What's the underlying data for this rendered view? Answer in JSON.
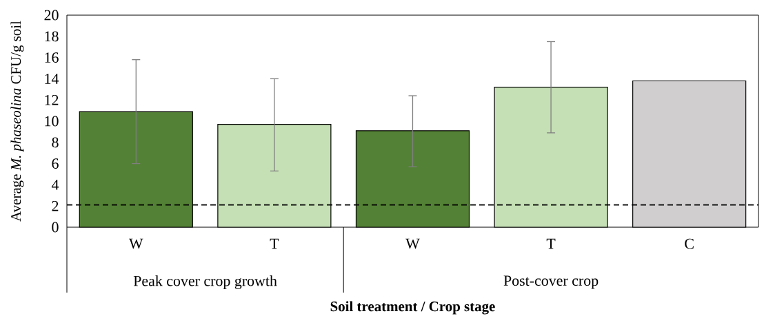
{
  "chart_data": {
    "type": "bar",
    "xlabel": "Soil treatment / Crop stage",
    "ylabel": "Average *M. phaseolina* CFU/g soil",
    "categories": [
      "W",
      "T",
      "W",
      "T",
      "C"
    ],
    "values": [
      10.9,
      9.7,
      9.1,
      13.2,
      13.8
    ],
    "colors": [
      "#538135",
      "#c5e0b4",
      "#538135",
      "#c5e0b4",
      "#d0cecf"
    ],
    "errors": [
      [
        6.0,
        15.8
      ],
      [
        5.3,
        14.0
      ],
      [
        5.7,
        12.4
      ],
      [
        8.9,
        17.5
      ],
      null
    ],
    "ylim": [
      0,
      20
    ],
    "yticks": [
      0,
      2,
      4,
      6,
      8,
      10,
      12,
      14,
      16,
      18,
      20
    ],
    "ref_lines": [
      {
        "axis": "y",
        "value": 2.1,
        "line_style": "dashed",
        "color": "#000000"
      }
    ],
    "annotations": [
      "Peak cover crop growth",
      "Post-cover crop"
    ],
    "grid": false
  }
}
